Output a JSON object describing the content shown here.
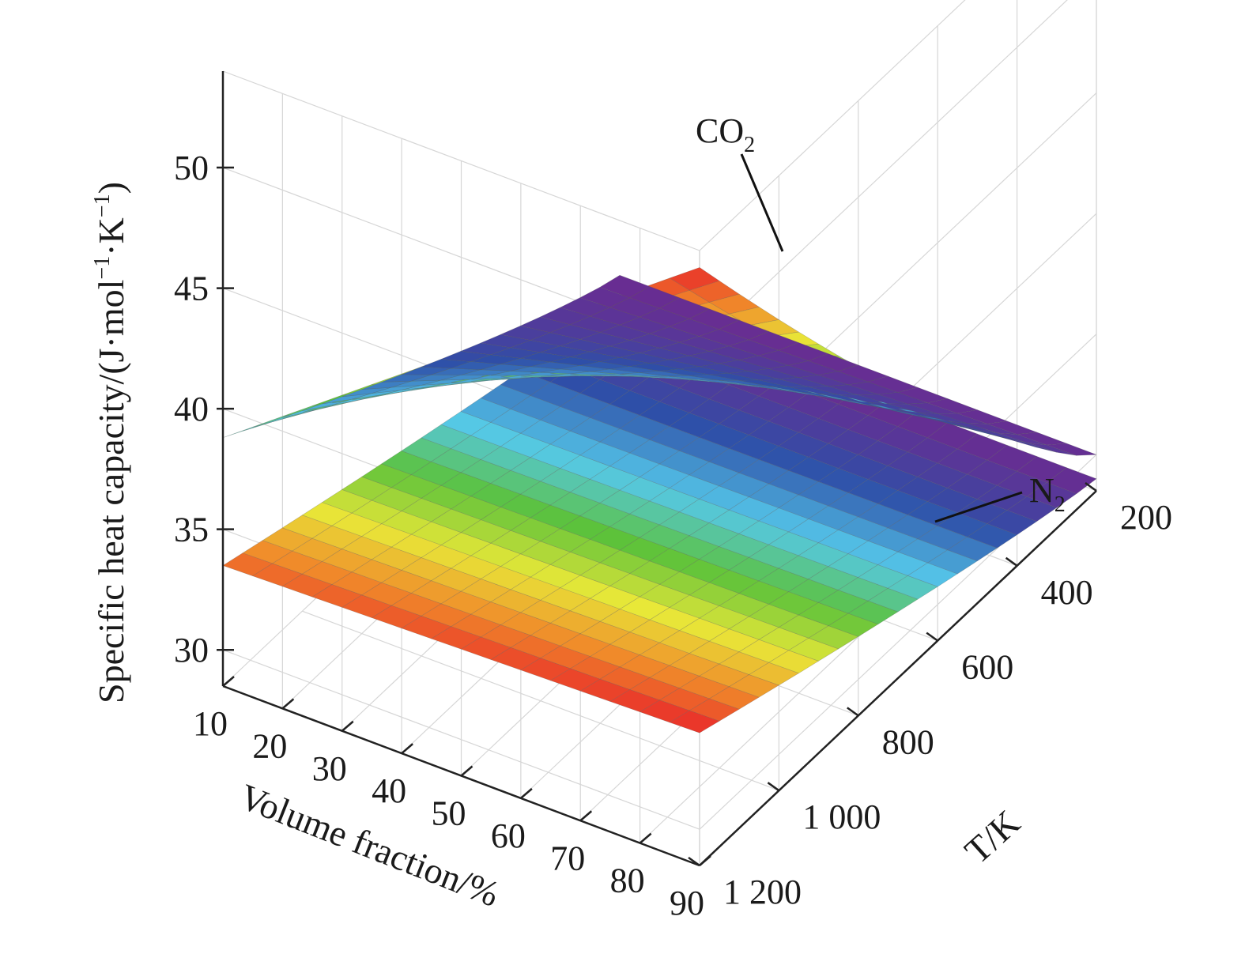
{
  "chart_data": {
    "type": "surface3d",
    "title": "",
    "axes": {
      "x": {
        "label": "Volume fraction/%",
        "ticks": [
          10,
          20,
          30,
          40,
          50,
          60,
          70,
          80,
          90
        ],
        "tick_labels": [
          "10",
          "20",
          "30",
          "40",
          "50",
          "60",
          "70",
          "80",
          "90"
        ],
        "range": [
          10,
          90
        ]
      },
      "y": {
        "label": "T/K",
        "ticks": [
          200,
          400,
          600,
          800,
          1000,
          1200
        ],
        "tick_labels": [
          "200",
          "400",
          "600",
          "800",
          "1 000",
          "1 200"
        ],
        "range": [
          200,
          1200
        ]
      },
      "z": {
        "label_main": "Specific heat capacity/(J·mol",
        "label_sup1": "−1",
        "label_mid": "·K",
        "label_sup2": "−1",
        "label_end": ")",
        "ticks": [
          30,
          35,
          40,
          45,
          50
        ],
        "tick_labels": [
          "30",
          "35",
          "40",
          "45",
          "50"
        ],
        "range": [
          28.5,
          54
        ]
      }
    },
    "grid": true,
    "colormap": [
      "#6a2c91",
      "#2e4fa8",
      "#55c8ea",
      "#5cc23a",
      "#e8e838",
      "#f08a2a",
      "#e8242a"
    ],
    "series": [
      {
        "name": "CO",
        "name_sub": "2",
        "corners": [
          {
            "x": 10,
            "t": 200,
            "cp": 30.0
          },
          {
            "x": 90,
            "t": 200,
            "cp": 30.0
          },
          {
            "x": 10,
            "t": 1200,
            "cp": 38.8
          },
          {
            "x": 90,
            "t": 1200,
            "cp": 53.3
          }
        ],
        "color_range": [
          30.0,
          53.3
        ]
      },
      {
        "name": "N",
        "name_sub": "2",
        "corners": [
          {
            "x": 10,
            "t": 200,
            "cp": 29.0
          },
          {
            "x": 90,
            "t": 200,
            "cp": 29.0
          },
          {
            "x": 10,
            "t": 1200,
            "cp": 33.5
          },
          {
            "x": 90,
            "t": 1200,
            "cp": 34.0
          }
        ],
        "color_range": [
          29.0,
          34.0
        ]
      }
    ]
  }
}
